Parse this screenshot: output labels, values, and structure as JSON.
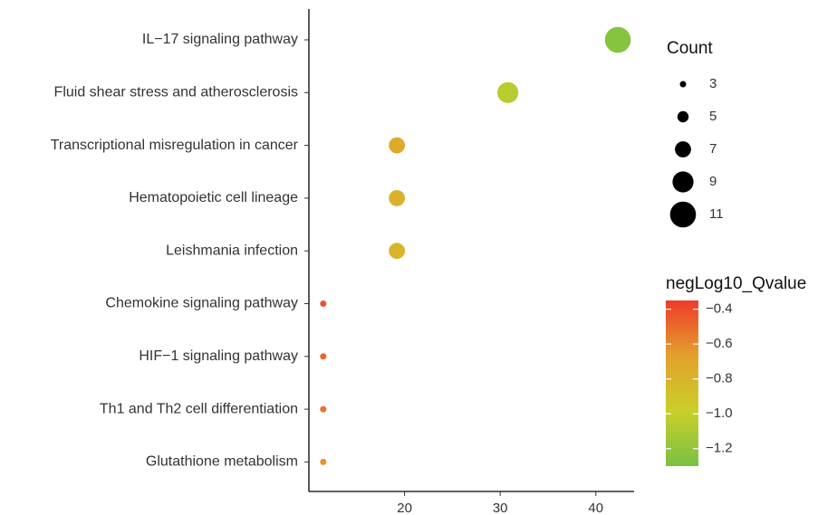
{
  "chart_data": {
    "type": "scatter",
    "xlabel": "",
    "ylabel": "",
    "xlim": [
      10,
      44
    ],
    "x_ticks": [
      20,
      30,
      40
    ],
    "categories": [
      "IL−17 signaling pathway",
      "Fluid shear stress and atherosclerosis",
      "Transcriptional misregulation in cancer",
      "Hematopoietic cell lineage",
      "Leishmania infection",
      "Chemokine signaling pathway",
      "HIF−1 signaling pathway",
      "Th1 and Th2 cell differentiation",
      "Glutathione metabolism"
    ],
    "points": [
      {
        "x": 42.3,
        "count": 11,
        "qvalue": -1.25
      },
      {
        "x": 30.8,
        "count": 9,
        "qvalue": -1.05
      },
      {
        "x": 19.2,
        "count": 7,
        "qvalue": -0.72
      },
      {
        "x": 19.2,
        "count": 7,
        "qvalue": -0.78
      },
      {
        "x": 19.2,
        "count": 7,
        "qvalue": -0.8
      },
      {
        "x": 11.5,
        "count": 3,
        "qvalue": -0.42
      },
      {
        "x": 11.5,
        "count": 3,
        "qvalue": -0.48
      },
      {
        "x": 11.5,
        "count": 3,
        "qvalue": -0.52
      },
      {
        "x": 11.5,
        "count": 3,
        "qvalue": -0.62
      }
    ],
    "size_legend": {
      "title": "Count",
      "values": [
        "3",
        "5",
        "7",
        "9",
        "11"
      ]
    },
    "color_legend": {
      "title": "negLog10_Qvalue",
      "ticks": [
        "−0.4",
        "−0.6",
        "−0.8",
        "−1.0",
        "−1.2"
      ],
      "tick_values": [
        -0.4,
        -0.6,
        -0.8,
        -1.0,
        -1.2
      ],
      "range": [
        -1.3,
        -0.35
      ],
      "colors": [
        "#7ac143",
        "#c9cf2a",
        "#e3a12c",
        "#ee3b2a"
      ]
    },
    "grid": false,
    "legend_position": "right"
  }
}
